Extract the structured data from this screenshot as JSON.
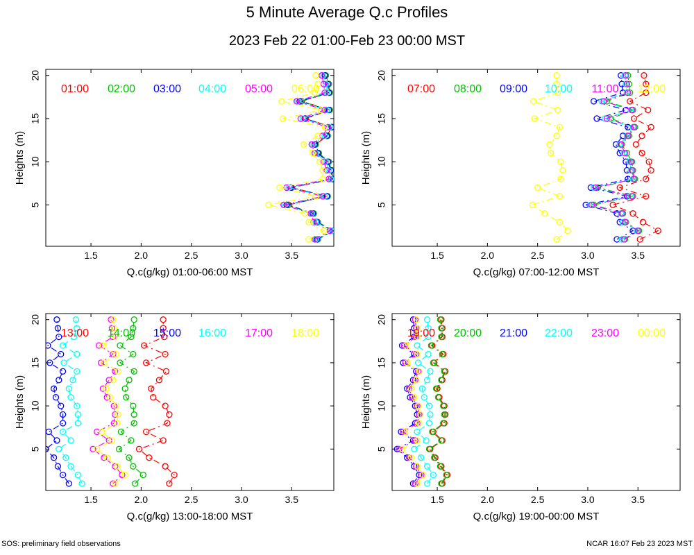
{
  "title": "5 Minute Average Q.c Profiles",
  "subtitle": "2023 Feb 22 01:00-Feb 23 00:00 MST",
  "footer_left": "SOS: preliminary field observations",
  "footer_right": "NCAR 16:07 Feb 23 2023 MST",
  "colors": [
    "#ff0000",
    "#00c000",
    "#0000ff",
    "#00ffff",
    "#ff00ff",
    "#ffff00"
  ],
  "chart_data": [
    {
      "type": "line",
      "title": "",
      "xlabel": "Q.c(g/kg) 01:00-06:00 MST",
      "ylabel": "Heights (m)",
      "xlim": [
        1.05,
        3.92
      ],
      "ylim": [
        0.2,
        20.7
      ],
      "xticks": [
        "1.5",
        "2.0",
        "2.5",
        "3.0",
        "3.5"
      ],
      "yticks": [
        "5",
        "10",
        "15",
        "20"
      ],
      "heights": [
        1,
        2,
        3,
        4,
        5,
        6,
        7,
        8,
        9,
        10,
        11,
        12,
        13,
        14,
        15,
        16,
        17,
        18,
        19,
        20
      ],
      "series": [
        {
          "name": "01:00",
          "values": [
            3.76,
            3.92,
            3.76,
            3.72,
            3.47,
            3.85,
            3.5,
            3.91,
            3.9,
            3.86,
            3.77,
            3.74,
            3.85,
            3.9,
            3.64,
            3.88,
            3.6,
            3.88,
            3.87,
            3.84
          ]
        },
        {
          "name": "02:00",
          "values": [
            3.76,
            3.92,
            3.76,
            3.72,
            3.46,
            3.86,
            3.49,
            3.91,
            3.9,
            3.87,
            3.77,
            3.74,
            3.86,
            3.91,
            3.63,
            3.88,
            3.59,
            3.88,
            3.87,
            3.84
          ]
        },
        {
          "name": "03:00",
          "values": [
            3.75,
            3.91,
            3.75,
            3.71,
            3.45,
            3.85,
            3.49,
            3.91,
            3.89,
            3.86,
            3.76,
            3.73,
            3.85,
            3.9,
            3.63,
            3.87,
            3.58,
            3.87,
            3.86,
            3.83
          ]
        },
        {
          "name": "04:00",
          "values": [
            3.74,
            3.9,
            3.74,
            3.7,
            3.43,
            3.83,
            3.47,
            3.89,
            3.87,
            3.84,
            3.74,
            3.71,
            3.83,
            3.88,
            3.61,
            3.85,
            3.56,
            3.85,
            3.84,
            3.81
          ]
        },
        {
          "name": "05:00",
          "values": [
            3.73,
            3.88,
            3.72,
            3.69,
            3.42,
            3.81,
            3.45,
            3.87,
            3.85,
            3.82,
            3.73,
            3.7,
            3.81,
            3.86,
            3.59,
            3.83,
            3.55,
            3.83,
            3.82,
            3.8
          ]
        },
        {
          "name": "06:00",
          "values": [
            3.67,
            3.82,
            3.67,
            3.63,
            3.27,
            3.74,
            3.38,
            3.81,
            3.81,
            3.78,
            3.71,
            3.62,
            3.76,
            3.83,
            3.41,
            3.79,
            3.4,
            3.73,
            3.76,
            3.74
          ]
        }
      ]
    },
    {
      "type": "line",
      "title": "",
      "xlabel": "Q.c(g/kg) 07:00-12:00 MST",
      "ylabel": "Heights (m)",
      "xlim": [
        1.05,
        3.92
      ],
      "ylim": [
        0.2,
        20.7
      ],
      "xticks": [
        "1.5",
        "2.0",
        "2.5",
        "3.0",
        "3.5"
      ],
      "yticks": [
        "5",
        "10",
        "15",
        "20"
      ],
      "heights": [
        1,
        2,
        3,
        4,
        5,
        6,
        7,
        8,
        9,
        10,
        11,
        12,
        13,
        14,
        15,
        16,
        17,
        18,
        19,
        20
      ],
      "series": [
        {
          "name": "07:00",
          "values": [
            3.52,
            3.7,
            3.55,
            3.45,
            3.25,
            3.58,
            3.32,
            3.58,
            3.63,
            3.61,
            3.54,
            3.48,
            3.54,
            3.63,
            3.46,
            3.6,
            3.42,
            3.58,
            3.58,
            3.56
          ]
        },
        {
          "name": "08:00",
          "values": [
            3.37,
            3.51,
            3.38,
            3.35,
            3.06,
            3.45,
            3.1,
            3.47,
            3.45,
            3.44,
            3.39,
            3.34,
            3.41,
            3.47,
            3.23,
            3.45,
            3.19,
            3.42,
            3.41,
            3.4
          ]
        },
        {
          "name": "09:00",
          "values": [
            3.29,
            3.45,
            3.32,
            3.29,
            2.98,
            3.39,
            3.03,
            3.4,
            3.39,
            3.38,
            3.32,
            3.28,
            3.35,
            3.4,
            3.09,
            3.38,
            3.06,
            3.35,
            3.34,
            3.33
          ]
        },
        {
          "name": "10:00",
          "values": [
            3.34,
            3.49,
            3.35,
            3.33,
            3.03,
            3.43,
            3.06,
            3.45,
            3.43,
            3.42,
            3.36,
            3.32,
            3.39,
            3.45,
            3.17,
            3.43,
            3.14,
            3.39,
            3.38,
            3.37
          ]
        },
        {
          "name": "11:00",
          "values": [
            3.36,
            3.5,
            3.37,
            3.34,
            3.04,
            3.44,
            3.08,
            3.46,
            3.44,
            3.43,
            3.37,
            3.33,
            3.4,
            3.46,
            3.19,
            3.44,
            3.16,
            3.4,
            3.39,
            3.38
          ]
        },
        {
          "name": "12:00",
          "values": [
            2.69,
            2.8,
            2.72,
            2.57,
            2.45,
            2.72,
            2.5,
            2.73,
            2.75,
            2.73,
            2.63,
            2.62,
            2.69,
            2.72,
            2.47,
            2.7,
            2.46,
            2.7,
            2.69,
            2.69
          ]
        }
      ]
    },
    {
      "type": "line",
      "title": "",
      "xlabel": "Q.c(g/kg) 13:00-18:00 MST",
      "ylabel": "Heights (m)",
      "xlim": [
        1.05,
        3.92
      ],
      "ylim": [
        0.2,
        20.7
      ],
      "xticks": [
        "1.5",
        "2.0",
        "2.5",
        "3.0",
        "3.5"
      ],
      "yticks": [
        "5",
        "10",
        "15",
        "20"
      ],
      "heights": [
        1,
        2,
        3,
        4,
        5,
        6,
        7,
        8,
        9,
        10,
        11,
        12,
        13,
        14,
        15,
        16,
        17,
        18,
        19,
        20
      ],
      "series": [
        {
          "name": "13:00",
          "values": [
            2.28,
            2.33,
            2.24,
            2.08,
            1.98,
            2.22,
            2.05,
            2.26,
            2.28,
            2.24,
            2.12,
            2.1,
            2.18,
            2.25,
            2.05,
            2.24,
            2.03,
            2.23,
            2.22,
            2.22
          ]
        },
        {
          "name": "14:00",
          "values": [
            1.94,
            2.02,
            1.92,
            1.88,
            1.78,
            1.9,
            1.8,
            1.93,
            1.93,
            1.92,
            1.85,
            1.84,
            1.88,
            1.93,
            1.79,
            1.92,
            1.79,
            1.9,
            1.92,
            1.93
          ]
        },
        {
          "name": "15:00",
          "values": [
            1.28,
            1.22,
            1.17,
            1.13,
            1.05,
            1.16,
            1.08,
            1.22,
            1.22,
            1.2,
            1.15,
            1.13,
            1.18,
            1.22,
            1.09,
            1.2,
            1.07,
            1.18,
            1.17,
            1.16
          ]
        },
        {
          "name": "16:00",
          "values": [
            1.41,
            1.37,
            1.3,
            1.25,
            1.18,
            1.3,
            1.22,
            1.37,
            1.37,
            1.36,
            1.3,
            1.28,
            1.32,
            1.36,
            1.23,
            1.36,
            1.22,
            1.33,
            1.36,
            1.35
          ]
        },
        {
          "name": "17:00",
          "values": [
            1.72,
            1.81,
            1.74,
            1.63,
            1.52,
            1.68,
            1.56,
            1.73,
            1.74,
            1.73,
            1.66,
            1.62,
            1.68,
            1.74,
            1.6,
            1.72,
            1.58,
            1.72,
            1.71,
            1.7
          ]
        },
        {
          "name": "18:00",
          "values": [
            1.74,
            1.84,
            1.76,
            1.66,
            1.56,
            1.71,
            1.61,
            1.76,
            1.77,
            1.75,
            1.69,
            1.65,
            1.72,
            1.77,
            1.63,
            1.75,
            1.62,
            1.74,
            1.73,
            1.72
          ]
        }
      ]
    },
    {
      "type": "line",
      "title": "",
      "xlabel": "Q.c(g/kg) 19:00-00:00 MST",
      "ylabel": "Heights (m)",
      "xlim": [
        1.05,
        3.92
      ],
      "ylim": [
        0.2,
        20.7
      ],
      "xticks": [
        "1.5",
        "2.0",
        "2.5",
        "3.0",
        "3.5"
      ],
      "yticks": [
        "5",
        "10",
        "15",
        "20"
      ],
      "heights": [
        1,
        2,
        3,
        4,
        5,
        6,
        7,
        8,
        9,
        10,
        11,
        12,
        13,
        14,
        15,
        16,
        17,
        18,
        19,
        20
      ],
      "series": [
        {
          "name": "19:00",
          "values": [
            1.55,
            1.6,
            1.54,
            1.48,
            1.43,
            1.55,
            1.46,
            1.57,
            1.58,
            1.57,
            1.52,
            1.5,
            1.55,
            1.58,
            1.47,
            1.56,
            1.45,
            1.55,
            1.55,
            1.54
          ]
        },
        {
          "name": "20:00",
          "values": [
            1.54,
            1.59,
            1.53,
            1.47,
            1.42,
            1.54,
            1.45,
            1.56,
            1.57,
            1.56,
            1.51,
            1.49,
            1.54,
            1.57,
            1.46,
            1.55,
            1.44,
            1.54,
            1.54,
            1.53
          ]
        },
        {
          "name": "21:00",
          "values": [
            1.26,
            1.32,
            1.27,
            1.2,
            1.1,
            1.26,
            1.14,
            1.28,
            1.3,
            1.28,
            1.23,
            1.2,
            1.26,
            1.29,
            1.16,
            1.27,
            1.15,
            1.27,
            1.27,
            1.26
          ]
        },
        {
          "name": "22:00",
          "values": [
            1.4,
            1.46,
            1.4,
            1.34,
            1.27,
            1.39,
            1.3,
            1.42,
            1.43,
            1.42,
            1.37,
            1.35,
            1.4,
            1.43,
            1.31,
            1.41,
            1.3,
            1.41,
            1.41,
            1.4
          ]
        },
        {
          "name": "23:00",
          "values": [
            1.28,
            1.34,
            1.29,
            1.22,
            1.12,
            1.28,
            1.16,
            1.3,
            1.32,
            1.3,
            1.25,
            1.22,
            1.28,
            1.31,
            1.18,
            1.29,
            1.17,
            1.29,
            1.29,
            1.28
          ]
        },
        {
          "name": "00:00",
          "values": [
            1.3,
            1.36,
            1.3,
            1.24,
            1.15,
            1.3,
            1.18,
            1.32,
            1.33,
            1.31,
            1.27,
            1.24,
            1.29,
            1.32,
            1.2,
            1.3,
            1.19,
            1.3,
            1.3,
            1.29
          ]
        }
      ]
    }
  ]
}
